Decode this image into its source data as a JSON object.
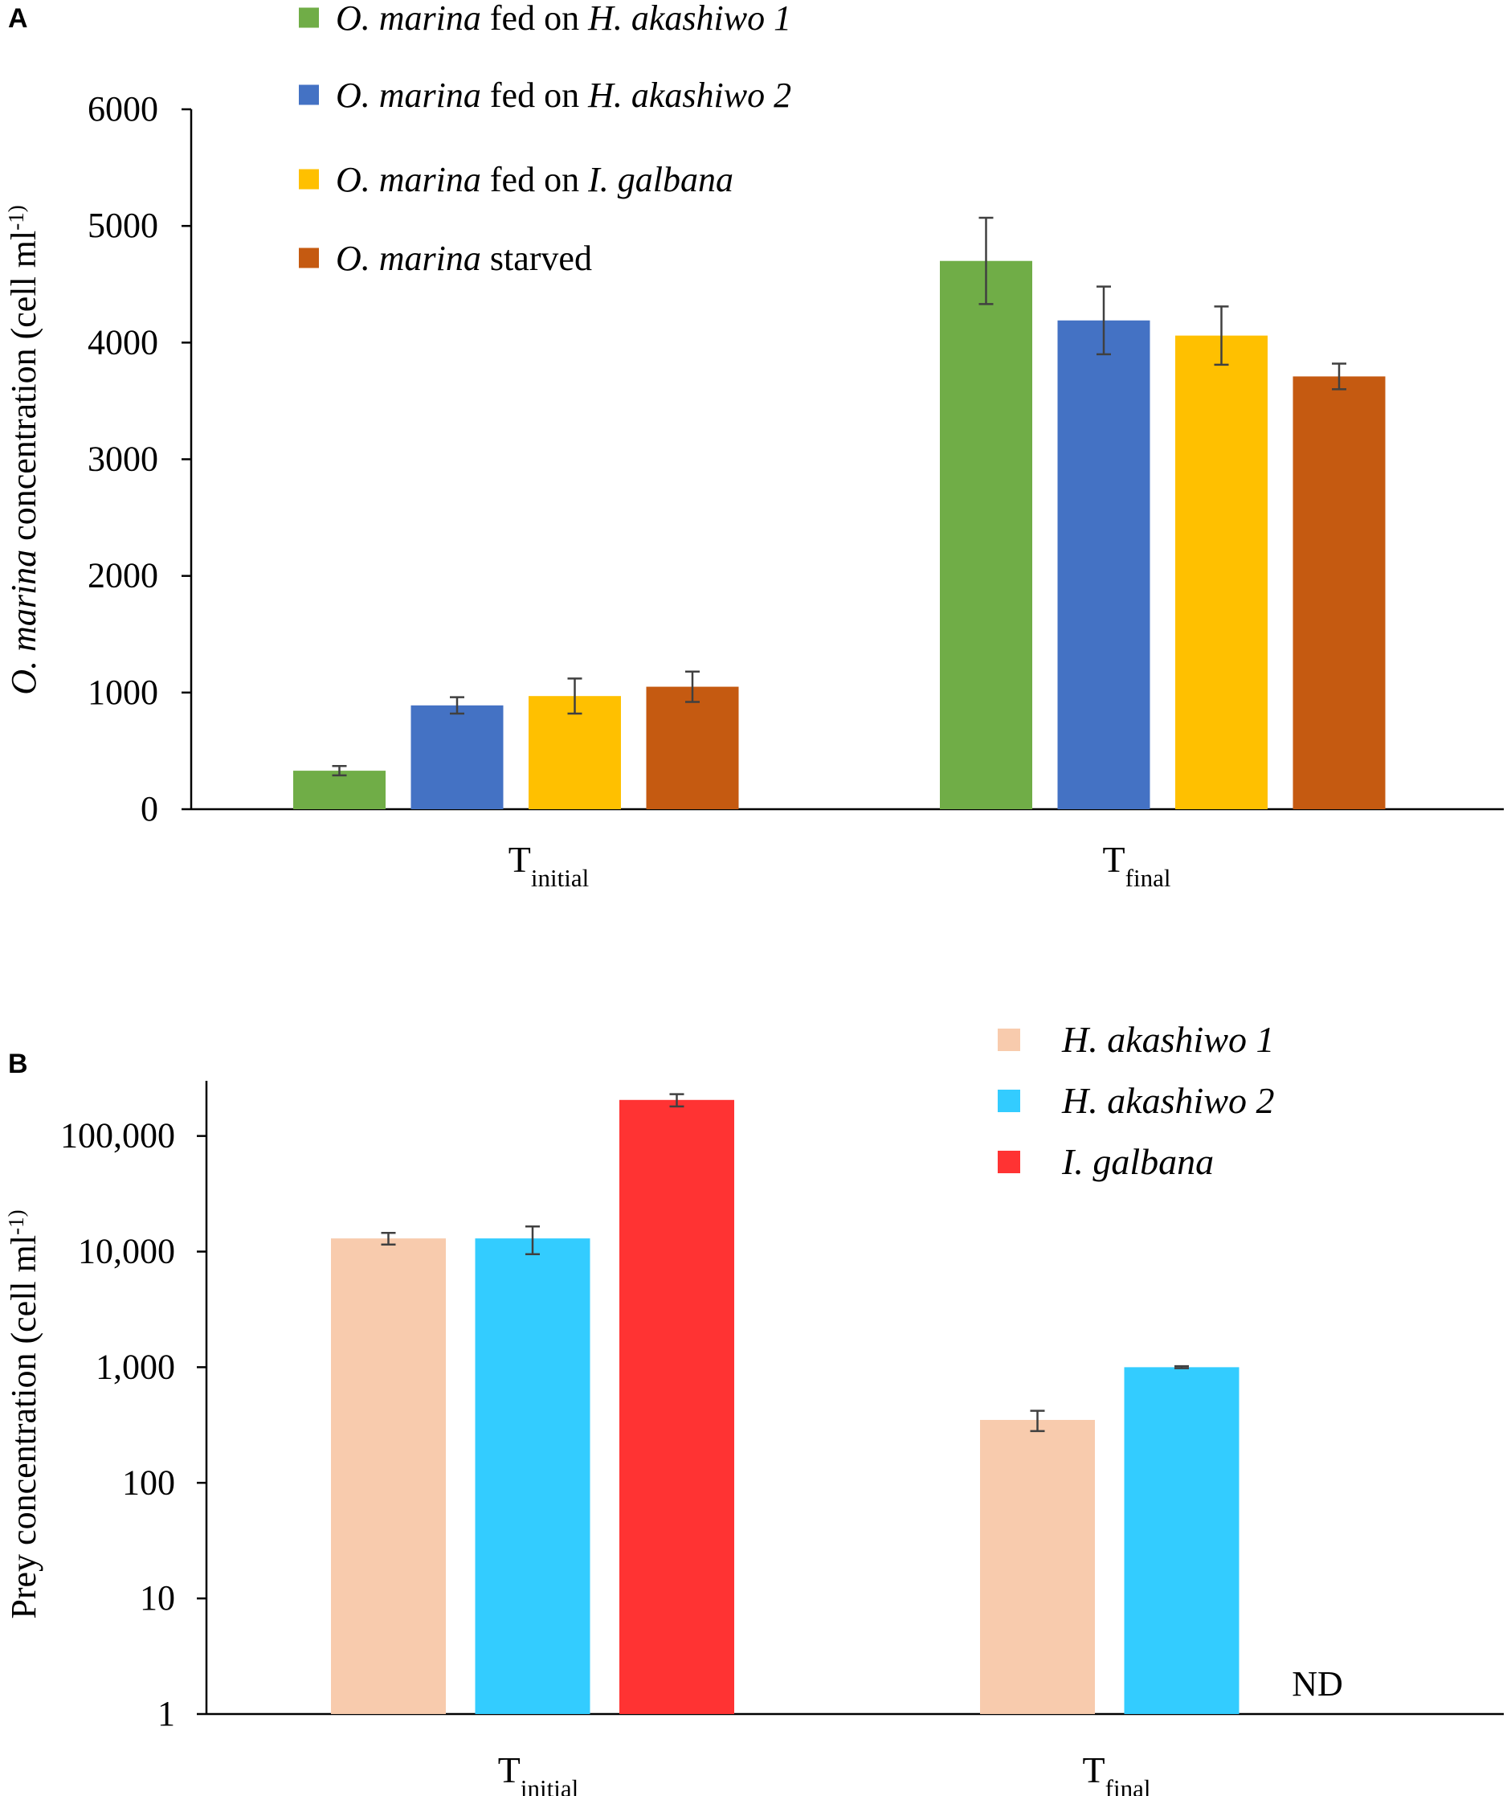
{
  "chart_data": [
    {
      "panel_label": "A",
      "type": "bar",
      "scale": "linear",
      "ylabel_italic": "O. marina",
      "ylabel_rest": " concentration (cell  ml",
      "ylabel_sup": "-1)",
      "ylim": [
        0,
        6000
      ],
      "yticks": [
        0,
        1000,
        2000,
        3000,
        4000,
        5000,
        6000
      ],
      "ytick_labels": [
        "0",
        "1000",
        "2000",
        "3000",
        "4000",
        "5000",
        "6000"
      ],
      "categories": [
        {
          "main": "T",
          "sub": "initial"
        },
        {
          "main": "T",
          "sub": "final"
        }
      ],
      "series": [
        {
          "color": "#70AD47",
          "legend": [
            {
              "t": "O. marina",
              "i": true
            },
            {
              "t": " fed on ",
              "i": false
            },
            {
              "t": "H. akashiwo 1",
              "i": true
            }
          ],
          "values": [
            330,
            4700
          ],
          "errors": [
            40,
            370
          ]
        },
        {
          "color": "#4472C4",
          "legend": [
            {
              "t": "O. marina",
              "i": true
            },
            {
              "t": " fed on ",
              "i": false
            },
            {
              "t": "H. akashiwo 2",
              "i": true
            }
          ],
          "values": [
            890,
            4190
          ],
          "errors": [
            70,
            290
          ]
        },
        {
          "color": "#FFC000",
          "legend": [
            {
              "t": "O. marina",
              "i": true
            },
            {
              "t": " fed on ",
              "i": false
            },
            {
              "t": "I. galbana",
              "i": true
            }
          ],
          "values": [
            970,
            4060
          ],
          "errors": [
            150,
            250
          ]
        },
        {
          "color": "#C55A11",
          "legend": [
            {
              "t": "O. marina",
              "i": true
            },
            {
              "t": " starved",
              "i": false
            }
          ],
          "values": [
            1050,
            3710
          ],
          "errors": [
            130,
            110
          ]
        }
      ]
    },
    {
      "panel_label": "B",
      "type": "bar",
      "scale": "log10",
      "ylabel_italic": "",
      "ylabel_rest": "Prey concentration (cell  ml",
      "ylabel_sup": "-1)",
      "ylim": [
        1,
        300000
      ],
      "yticks": [
        1,
        10,
        100,
        1000,
        10000,
        100000
      ],
      "ytick_labels": [
        "1",
        "10",
        "100",
        "1,000",
        "10,000",
        "100,000"
      ],
      "categories": [
        {
          "main": "T",
          "sub": "initial"
        },
        {
          "main": "T",
          "sub": "final"
        }
      ],
      "annotation": "ND",
      "series": [
        {
          "color": "#F8CBAD",
          "legend": [
            {
              "t": "H. akashiwo 1",
              "i": true
            }
          ],
          "values": [
            13000,
            350
          ],
          "errors": [
            1500,
            70
          ]
        },
        {
          "color": "#33CCFF",
          "legend": [
            {
              "t": "H. akashiwo 2",
              "i": true
            }
          ],
          "values": [
            13000,
            1000
          ],
          "errors": [
            3500,
            20
          ]
        },
        {
          "color": "#FF3333",
          "legend": [
            {
              "t": "I. galbana",
              "i": true
            }
          ],
          "values": [
            205000,
            null
          ],
          "errors": [
            25000,
            null
          ]
        }
      ]
    }
  ]
}
